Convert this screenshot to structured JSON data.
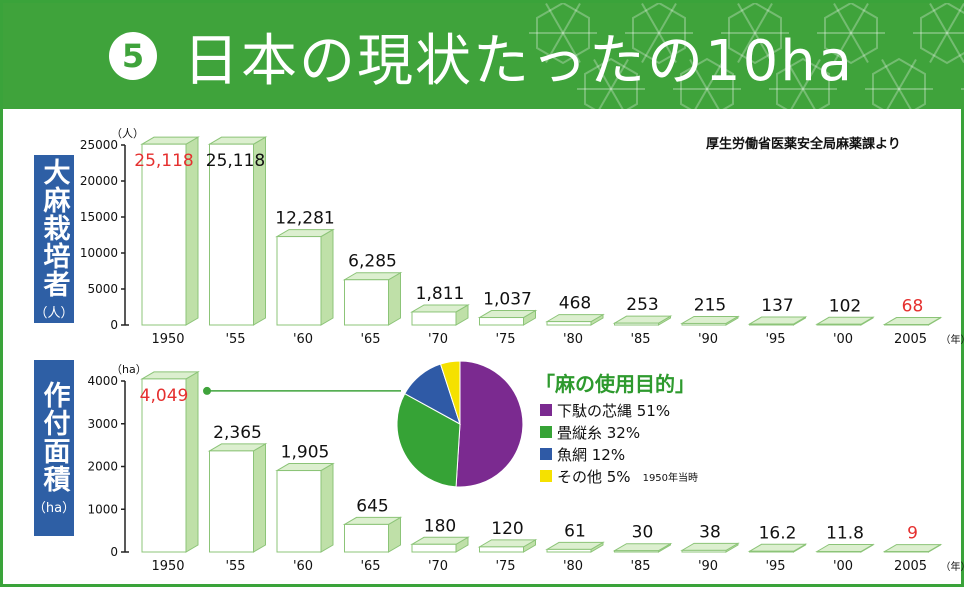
{
  "header": {
    "number": "5",
    "title": "日本の現状たったの10ha"
  },
  "source": "厚生労働省医薬安全局麻薬課より",
  "colors": {
    "header_green": "#3fa33b",
    "side_blue": "#2e5fa5",
    "bar_face": "#ffffff",
    "bar_side": "#bfe0a8",
    "bar_top": "#dcefcf",
    "highlight_red": "#e5302f"
  },
  "side_labels": {
    "growers": {
      "label": "大麻栽培者",
      "unit": "（人）"
    },
    "area": {
      "label": "作付面積",
      "unit": "（ha）"
    }
  },
  "pie": {
    "title": "「麻の使用目的」",
    "note": "1950年当時",
    "slices": [
      {
        "label": "下駄の芯縄 51%",
        "value": 51,
        "color": "#7b2a90"
      },
      {
        "label": "畳縦糸 32%",
        "value": 32,
        "color": "#36a336"
      },
      {
        "label": "魚網 12%",
        "value": 12,
        "color": "#2f5aa6"
      },
      {
        "label": "その他 5%",
        "value": 5,
        "color": "#f5e100"
      }
    ]
  },
  "chart_data": [
    {
      "type": "bar",
      "title": "",
      "ylabel": "（人）",
      "xlabel": "",
      "x_unit_suffix": "（年）",
      "categories": [
        "1950",
        "'55",
        "'60",
        "'65",
        "'70",
        "'75",
        "'80",
        "'85",
        "'90",
        "'95",
        "'00",
        "2005"
      ],
      "values": [
        25118,
        25118,
        12281,
        6285,
        1811,
        1037,
        468,
        253,
        215,
        137,
        102,
        68
      ],
      "value_labels": [
        "25,118",
        "25,118",
        "12,281",
        "6,285",
        "1,811",
        "1,037",
        "468",
        "253",
        "215",
        "137",
        "102",
        "68"
      ],
      "highlight_indices": [
        0,
        11
      ],
      "yticks": [
        "0",
        "5000",
        "10000",
        "15000",
        "20000",
        "25000"
      ],
      "ylim": [
        0,
        25000
      ],
      "grid": false
    },
    {
      "type": "bar",
      "title": "",
      "ylabel": "（ha）",
      "xlabel": "",
      "x_unit_suffix": "（年）",
      "categories": [
        "1950",
        "'55",
        "'60",
        "'65",
        "'70",
        "'75",
        "'80",
        "'85",
        "'90",
        "'95",
        "'00",
        "2005"
      ],
      "values": [
        4049,
        2365,
        1905,
        645,
        180,
        120,
        61,
        30,
        38,
        16.2,
        11.8,
        9
      ],
      "value_labels": [
        "4,049",
        "2,365",
        "1,905",
        "645",
        "180",
        "120",
        "61",
        "30",
        "38",
        "16.2",
        "11.8",
        "9"
      ],
      "highlight_indices": [
        0,
        11
      ],
      "yticks": [
        "0",
        "1000",
        "2000",
        "3000",
        "4000"
      ],
      "ylim": [
        0,
        4000
      ],
      "grid": false
    }
  ]
}
